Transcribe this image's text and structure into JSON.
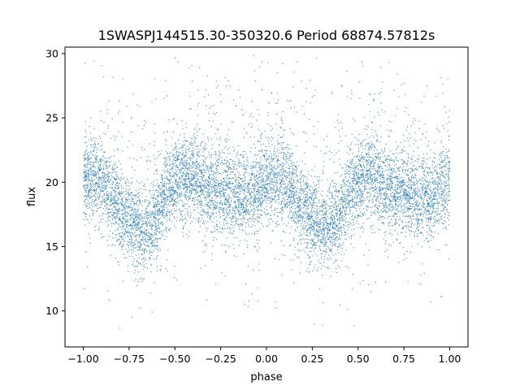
{
  "chart_data": {
    "type": "scatter",
    "title": "1SWASPJ144515.30-350320.6 Period 68874.57812s",
    "xlabel": "phase",
    "ylabel": "flux",
    "xlim": [
      -1.1,
      1.1
    ],
    "ylim": [
      7.2,
      30.5
    ],
    "xticks": [
      -1.0,
      -0.75,
      -0.5,
      -0.25,
      0.0,
      0.25,
      0.5,
      0.75,
      1.0
    ],
    "xtick_labels": [
      "−1.00",
      "−0.75",
      "−0.50",
      "−0.25",
      "0.00",
      "0.25",
      "0.50",
      "0.75",
      "1.00"
    ],
    "yticks": [
      10,
      15,
      20,
      25,
      30
    ],
    "ytick_labels": [
      "10",
      "15",
      "20",
      "25",
      "30"
    ],
    "grid": false,
    "marker_color": "#1f77b4",
    "phase_range": [
      -1.0,
      1.0
    ],
    "flux_clip": [
      8.2,
      29.9
    ],
    "light_curve_profile": {
      "phase": [
        0.0,
        0.05,
        0.1,
        0.15,
        0.2,
        0.25,
        0.3,
        0.35,
        0.4,
        0.45,
        0.5,
        0.55,
        0.6,
        0.65,
        0.7,
        0.75,
        0.8,
        0.85,
        0.9,
        0.95,
        1.0
      ],
      "median_flux": [
        20.0,
        20.3,
        20.0,
        19.0,
        18.0,
        17.3,
        16.5,
        16.2,
        17.5,
        19.0,
        20.0,
        20.4,
        20.2,
        19.6,
        19.3,
        19.2,
        18.9,
        18.8,
        18.7,
        19.3,
        20.0
      ],
      "scatter": [
        1.6,
        1.6,
        1.6,
        1.6,
        1.5,
        1.5,
        1.5,
        1.5,
        1.5,
        1.6,
        1.6,
        1.6,
        1.6,
        1.6,
        1.6,
        1.6,
        1.6,
        1.6,
        1.6,
        1.6,
        1.6
      ]
    }
  }
}
